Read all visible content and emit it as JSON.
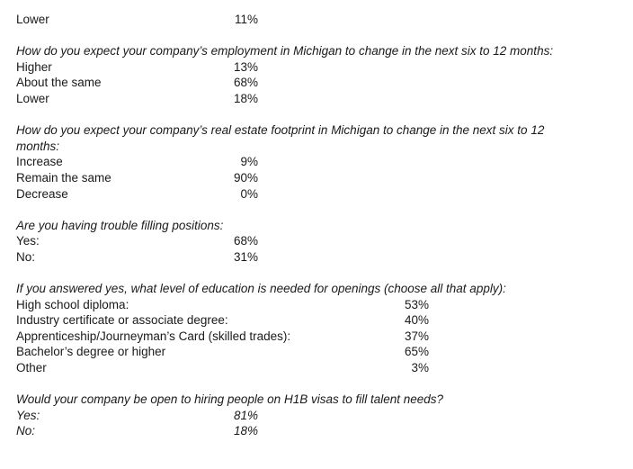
{
  "top_row": {
    "label": "Lower",
    "value": "11%"
  },
  "sections": [
    {
      "question": "How do you expect your company’s employment in Michigan to change in the next six to 12 months:",
      "options": [
        {
          "label": "Higher",
          "value": "13%"
        },
        {
          "label": "About the same",
          "value": "68%"
        },
        {
          "label": "Lower",
          "value": "18%"
        }
      ]
    },
    {
      "question": "How do you expect your company’s real estate footprint in Michigan to change in the next six to 12 months:",
      "options": [
        {
          "label": "Increase",
          "value": "9%"
        },
        {
          "label": "Remain the same",
          "value": "90%"
        },
        {
          "label": "Decrease",
          "value": "0%"
        }
      ]
    },
    {
      "question": "Are you  having trouble filling positions:",
      "options": [
        {
          "label": "Yes:",
          "value": "68%"
        },
        {
          "label": "No:",
          "value": "31%"
        }
      ]
    },
    {
      "question": "If you answered yes, what level of education is needed for openings (choose all that apply):",
      "options": [
        {
          "label": "High school diploma:",
          "value": "53%"
        },
        {
          "label": "Industry certificate or associate degree:",
          "value": "40%"
        },
        {
          "label": "Apprenticeship/Journeyman’s Card (skilled trades):",
          "value": "37%"
        },
        {
          "label": "Bachelor’s degree or higher",
          "value": "65%"
        },
        {
          "label": "Other",
          "value": "3%"
        }
      ]
    },
    {
      "question": "Would your company be open to hiring people on H1B visas to fill talent needs?",
      "options": [
        {
          "label": "Yes:",
          "value": "81%"
        },
        {
          "label": "No:",
          "value": "18%"
        }
      ]
    }
  ]
}
